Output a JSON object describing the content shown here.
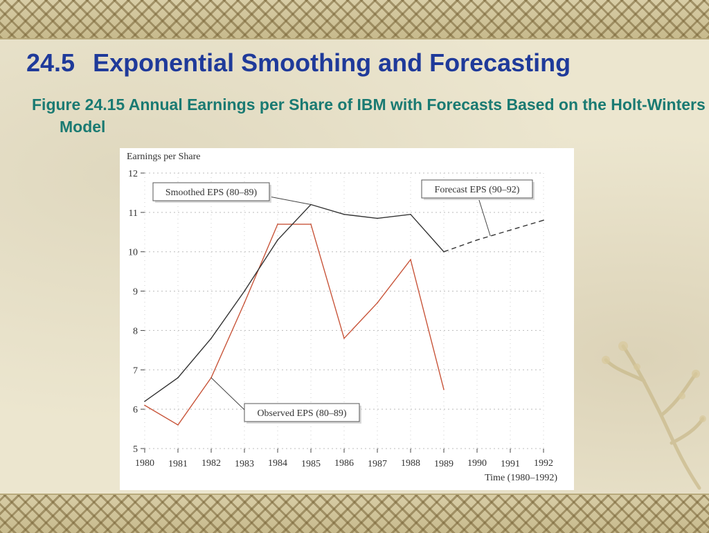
{
  "slide": {
    "section_number": "24.5",
    "title": "Exponential Smoothing and Forecasting",
    "caption": "Figure 24.15 Annual Earnings per Share of IBM with Forecasts Based on the Holt-Winters Model"
  },
  "colors": {
    "title": "#1f3a9a",
    "caption": "#1a7a72",
    "observed": "#c8553a",
    "smoothed": "#333333"
  },
  "chart_data": {
    "type": "line",
    "ylabel": "Earnings per Share",
    "xlabel": "Time (1980–1992)",
    "ylim": [
      5,
      12
    ],
    "xlim": [
      1980,
      1992
    ],
    "x_ticks": [
      "1980",
      "1981",
      "1982",
      "1983",
      "1984",
      "1985",
      "1986",
      "1987",
      "1988",
      "1989",
      "1990",
      "1991",
      "1992"
    ],
    "y_ticks": [
      "12",
      "11",
      "10",
      "9",
      "8",
      "7",
      "6",
      "5"
    ],
    "grid": true,
    "series": [
      {
        "name": "Observed EPS (80–89)",
        "style": "solid",
        "color": "#c8553a",
        "x": [
          1980,
          1981,
          1982,
          1983,
          1984,
          1985,
          1986,
          1987,
          1988,
          1989
        ],
        "values": [
          6.1,
          5.6,
          6.8,
          8.7,
          10.7,
          10.7,
          7.8,
          8.7,
          9.8,
          6.5
        ]
      },
      {
        "name": "Smoothed EPS (80–89)",
        "style": "solid",
        "color": "#333333",
        "x": [
          1980,
          1981,
          1982,
          1983,
          1984,
          1985,
          1986,
          1987,
          1988,
          1989
        ],
        "values": [
          6.2,
          6.8,
          7.8,
          9.0,
          10.3,
          11.2,
          10.95,
          10.85,
          10.95,
          10.0
        ]
      },
      {
        "name": "Forecast EPS (90–92)",
        "style": "dashed",
        "color": "#333333",
        "x": [
          1989,
          1990,
          1991,
          1992
        ],
        "values": [
          10.0,
          10.3,
          10.55,
          10.8
        ]
      }
    ],
    "annotations": [
      {
        "text": "Smoothed EPS (80–89)",
        "points_to": {
          "x": 1985,
          "y": 11.2
        }
      },
      {
        "text": "Forecast EPS (90–92)",
        "points_to": {
          "x": 1990.4,
          "y": 10.4
        }
      },
      {
        "text": "Observed EPS (80–89)",
        "points_to": {
          "x": 1982,
          "y": 6.8
        }
      }
    ]
  }
}
